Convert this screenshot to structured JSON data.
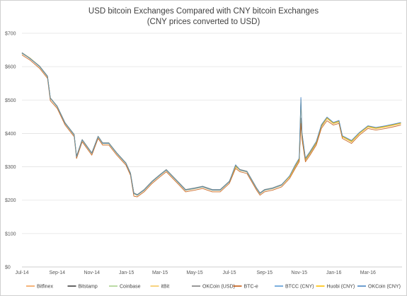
{
  "chart_data": {
    "type": "line",
    "title": "USD bitcoin Exchanges Compared with CNY bitcoin Exchanges",
    "subtitle": "(CNY prices converted to USD)",
    "xlabel": "",
    "ylabel": "",
    "x_ticks": [
      "Jul-14",
      "Sep-14",
      "Nov-14",
      "Jan-15",
      "Mar-15",
      "May-15",
      "Jul-15",
      "Sep-15",
      "Nov-15",
      "Jan-16",
      "Mar-16"
    ],
    "y_ticks": [
      "$0",
      "$100",
      "$200",
      "$300",
      "$400",
      "$500",
      "$600",
      "$700"
    ],
    "ylim": [
      0,
      700
    ],
    "xlim": [
      "2014-07-01",
      "2016-04-30"
    ],
    "grid": "horizontal",
    "legend_position": "bottom",
    "x": [
      "2014-07-01",
      "2014-07-15",
      "2014-08-01",
      "2014-08-15",
      "2014-08-20",
      "2014-09-01",
      "2014-09-15",
      "2014-10-01",
      "2014-10-05",
      "2014-10-15",
      "2014-11-01",
      "2014-11-12",
      "2014-11-20",
      "2014-12-01",
      "2014-12-15",
      "2014-12-31",
      "2015-01-08",
      "2015-01-14",
      "2015-01-20",
      "2015-02-01",
      "2015-02-15",
      "2015-03-01",
      "2015-03-12",
      "2015-04-01",
      "2015-04-15",
      "2015-05-01",
      "2015-05-15",
      "2015-06-01",
      "2015-06-15",
      "2015-07-01",
      "2015-07-12",
      "2015-07-20",
      "2015-08-01",
      "2015-08-18",
      "2015-08-24",
      "2015-09-01",
      "2015-09-15",
      "2015-10-01",
      "2015-10-15",
      "2015-10-25",
      "2015-11-01",
      "2015-11-04",
      "2015-11-06",
      "2015-11-12",
      "2015-11-20",
      "2015-12-01",
      "2015-12-10",
      "2015-12-20",
      "2015-12-31",
      "2016-01-10",
      "2016-01-16",
      "2016-02-01",
      "2016-02-15",
      "2016-03-01",
      "2016-03-15",
      "2016-04-01",
      "2016-04-15",
      "2016-04-28"
    ],
    "series": [
      {
        "name": "Bitfinex",
        "color": "#f4a259",
        "values": [
          640,
          625,
          600,
          570,
          505,
          480,
          430,
          395,
          330,
          380,
          340,
          390,
          370,
          370,
          340,
          310,
          280,
          220,
          215,
          230,
          255,
          275,
          290,
          255,
          230,
          235,
          240,
          230,
          230,
          255,
          300,
          290,
          285,
          235,
          220,
          230,
          235,
          245,
          270,
          300,
          320,
          440,
          390,
          320,
          340,
          370,
          420,
          445,
          430,
          435,
          390,
          375,
          400,
          420,
          415,
          420,
          425,
          430
        ]
      },
      {
        "name": "Bitstamp",
        "color": "#404040",
        "values": [
          641,
          624,
          601,
          571,
          506,
          481,
          431,
          396,
          331,
          381,
          341,
          391,
          371,
          371,
          341,
          311,
          281,
          221,
          216,
          231,
          256,
          276,
          291,
          256,
          231,
          236,
          241,
          231,
          231,
          256,
          301,
          291,
          286,
          236,
          221,
          231,
          236,
          246,
          271,
          301,
          321,
          445,
          392,
          321,
          341,
          371,
          421,
          446,
          431,
          436,
          391,
          376,
          401,
          421,
          416,
          421,
          426,
          431
        ]
      },
      {
        "name": "Coinbase",
        "color": "#a9d18e",
        "values": [
          640,
          626,
          600,
          570,
          505,
          480,
          430,
          395,
          330,
          380,
          340,
          390,
          370,
          370,
          340,
          310,
          280,
          220,
          215,
          230,
          255,
          275,
          290,
          255,
          230,
          235,
          240,
          230,
          230,
          255,
          300,
          290,
          285,
          235,
          220,
          230,
          235,
          245,
          270,
          300,
          320,
          440,
          390,
          320,
          340,
          370,
          420,
          445,
          430,
          435,
          390,
          375,
          400,
          420,
          415,
          420,
          425,
          430
        ]
      },
      {
        "name": "itBit",
        "color": "#f6c85f",
        "values": [
          639,
          625,
          599,
          569,
          504,
          479,
          429,
          394,
          329,
          379,
          339,
          389,
          369,
          369,
          339,
          309,
          279,
          219,
          214,
          229,
          254,
          274,
          289,
          254,
          229,
          234,
          239,
          229,
          229,
          254,
          299,
          289,
          284,
          234,
          219,
          229,
          234,
          244,
          269,
          299,
          319,
          438,
          389,
          319,
          339,
          369,
          419,
          444,
          429,
          434,
          389,
          374,
          399,
          419,
          414,
          419,
          424,
          429
        ]
      },
      {
        "name": "OKCoin (USD)",
        "color": "#7f7f7f",
        "values": [
          642,
          626,
          602,
          572,
          507,
          482,
          432,
          397,
          332,
          382,
          342,
          392,
          372,
          372,
          342,
          312,
          282,
          222,
          217,
          232,
          257,
          277,
          292,
          257,
          232,
          237,
          242,
          232,
          232,
          257,
          302,
          292,
          287,
          237,
          222,
          232,
          237,
          247,
          272,
          302,
          322,
          446,
          393,
          322,
          342,
          372,
          422,
          447,
          432,
          437,
          392,
          377,
          402,
          422,
          417,
          422,
          427,
          432
        ]
      },
      {
        "name": "BTC-e",
        "color": "#c55a11",
        "values": [
          635,
          620,
          595,
          565,
          498,
          475,
          425,
          390,
          325,
          375,
          335,
          385,
          365,
          365,
          335,
          305,
          275,
          212,
          210,
          225,
          250,
          270,
          285,
          250,
          225,
          230,
          235,
          225,
          225,
          250,
          295,
          285,
          280,
          230,
          215,
          225,
          230,
          240,
          265,
          295,
          315,
          430,
          382,
          315,
          335,
          365,
          415,
          438,
          425,
          430,
          385,
          370,
          395,
          415,
          410,
          415,
          420,
          425
        ]
      },
      {
        "name": "BTCC (CNY)",
        "color": "#5b9bd5",
        "values": [
          640,
          625,
          600,
          570,
          505,
          480,
          430,
          395,
          330,
          380,
          340,
          390,
          370,
          370,
          340,
          310,
          280,
          220,
          215,
          230,
          255,
          275,
          290,
          255,
          230,
          235,
          240,
          230,
          230,
          255,
          305,
          290,
          285,
          235,
          220,
          230,
          235,
          245,
          272,
          305,
          325,
          505,
          400,
          325,
          345,
          375,
          425,
          448,
          432,
          438,
          392,
          378,
          402,
          422,
          417,
          422,
          427,
          432
        ]
      },
      {
        "name": "Huobi (CNY)",
        "color": "#ffc000",
        "values": [
          641,
          626,
          601,
          571,
          506,
          481,
          431,
          396,
          331,
          381,
          341,
          391,
          371,
          371,
          341,
          311,
          281,
          221,
          216,
          231,
          256,
          276,
          291,
          256,
          231,
          236,
          241,
          231,
          231,
          256,
          304,
          291,
          286,
          236,
          221,
          231,
          236,
          246,
          271,
          304,
          324,
          500,
          398,
          324,
          344,
          374,
          424,
          447,
          431,
          437,
          391,
          377,
          401,
          421,
          416,
          421,
          426,
          431
        ]
      },
      {
        "name": "OKCoin (CNY)",
        "color": "#4a86c5",
        "values": [
          641,
          625,
          601,
          571,
          506,
          481,
          431,
          396,
          331,
          381,
          341,
          391,
          371,
          371,
          341,
          311,
          281,
          221,
          216,
          231,
          256,
          276,
          291,
          256,
          231,
          236,
          241,
          231,
          231,
          256,
          306,
          291,
          286,
          236,
          221,
          231,
          236,
          246,
          273,
          306,
          326,
          508,
          402,
          326,
          346,
          376,
          426,
          449,
          433,
          439,
          393,
          379,
          403,
          423,
          418,
          423,
          428,
          433
        ]
      }
    ]
  }
}
